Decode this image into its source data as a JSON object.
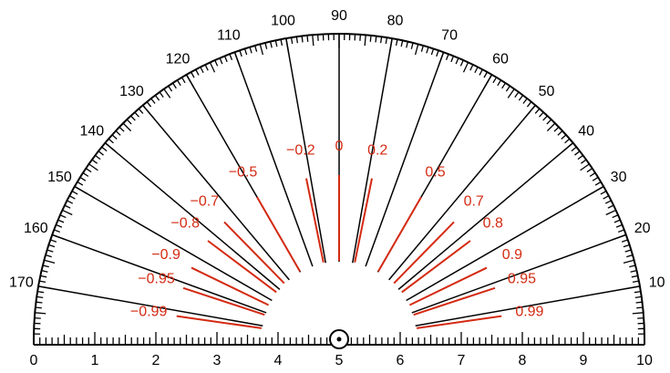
{
  "ruler": {
    "labels": [
      0,
      1,
      2,
      3,
      4,
      5,
      6,
      7,
      8,
      9,
      10
    ]
  },
  "angles": {
    "labels": [
      10,
      20,
      30,
      40,
      50,
      60,
      70,
      80,
      90,
      100,
      110,
      120,
      130,
      140,
      150,
      160,
      170
    ]
  },
  "correlations": [
    {
      "value": -0.99,
      "label": "−0.99"
    },
    {
      "value": -0.95,
      "label": "−0.95"
    },
    {
      "value": -0.9,
      "label": "−0.9"
    },
    {
      "value": -0.8,
      "label": "−0.8"
    },
    {
      "value": -0.7,
      "label": "−0.7"
    },
    {
      "value": -0.5,
      "label": "−0.5"
    },
    {
      "value": -0.2,
      "label": "−0.2"
    },
    {
      "value": 0,
      "label": "0"
    },
    {
      "value": 0.2,
      "label": "0.2"
    },
    {
      "value": 0.5,
      "label": "0.5"
    },
    {
      "value": 0.7,
      "label": "0.7"
    },
    {
      "value": 0.8,
      "label": "0.8"
    },
    {
      "value": 0.9,
      "label": "0.9"
    },
    {
      "value": 0.95,
      "label": "0.95"
    },
    {
      "value": 0.99,
      "label": "0.99"
    }
  ]
}
